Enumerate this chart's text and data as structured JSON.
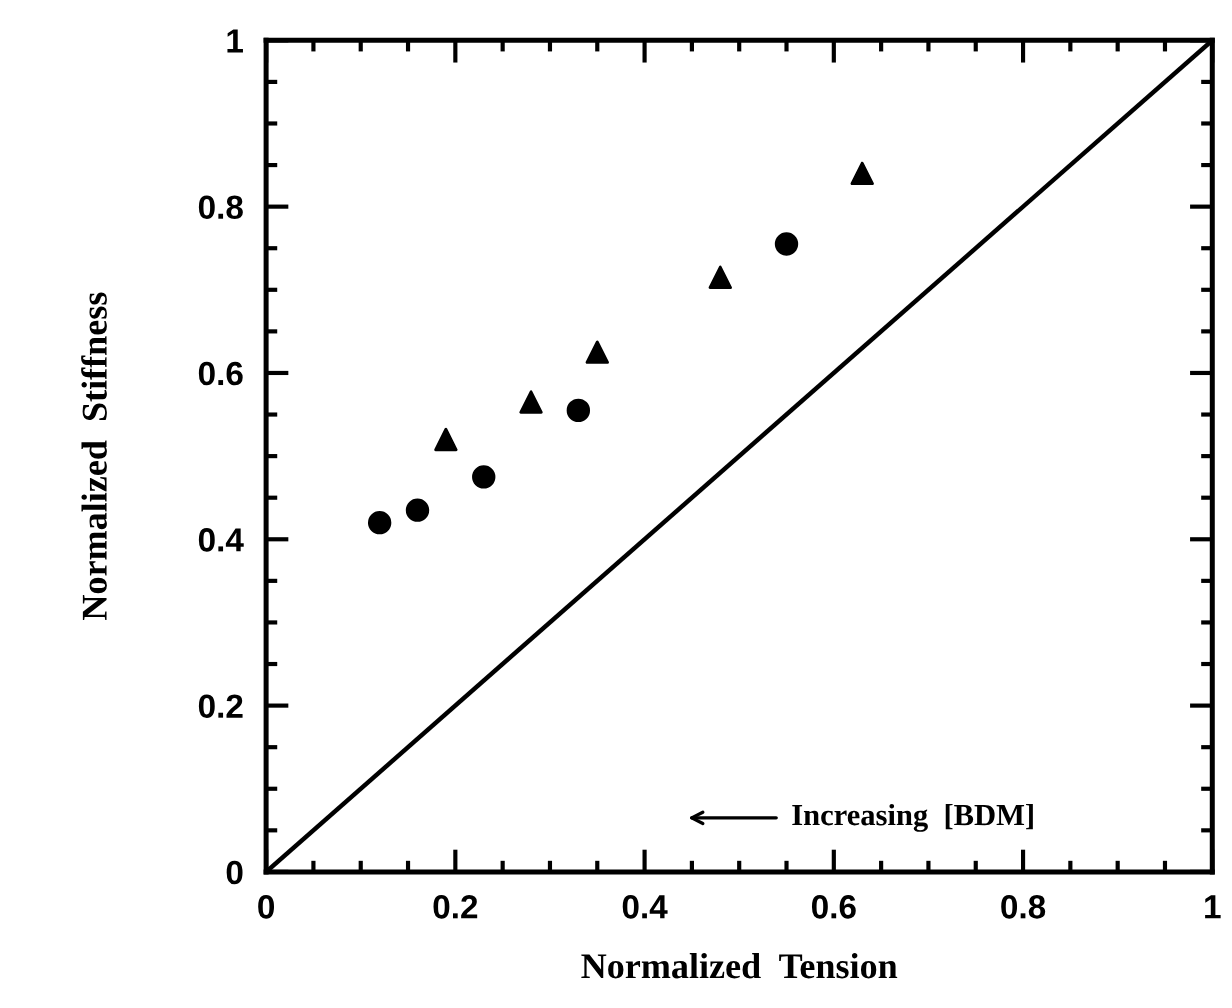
{
  "chart_data": {
    "type": "scatter",
    "xlabel": "Normalized  Tension",
    "ylabel": "Normalized  Stiffness",
    "series": [
      {
        "marker": "circle",
        "color": "#000000",
        "x": [
          0.12,
          0.16,
          0.23,
          0.33,
          0.55
        ],
        "values": [
          0.42,
          0.435,
          0.475,
          0.555,
          0.755
        ]
      },
      {
        "marker": "triangle",
        "color": "#000000",
        "x": [
          0.19,
          0.28,
          0.35,
          0.48,
          0.63
        ],
        "values": [
          0.52,
          0.565,
          0.625,
          0.715,
          0.84
        ]
      },
      {
        "type": "line",
        "marker": "none",
        "line_style": "solid",
        "color": "#000000",
        "x": [
          0,
          1
        ],
        "values": [
          0,
          1
        ]
      }
    ],
    "annotations": [
      "Increasing  [BDM]"
    ],
    "xlim": [
      0,
      1
    ],
    "ylim": [
      0,
      1
    ],
    "xticks": [
      0,
      0.2,
      0.4,
      0.6,
      0.8,
      1
    ],
    "yticks": [
      0,
      0.2,
      0.4,
      0.6,
      0.8,
      1
    ],
    "grid": false,
    "legend": false
  }
}
